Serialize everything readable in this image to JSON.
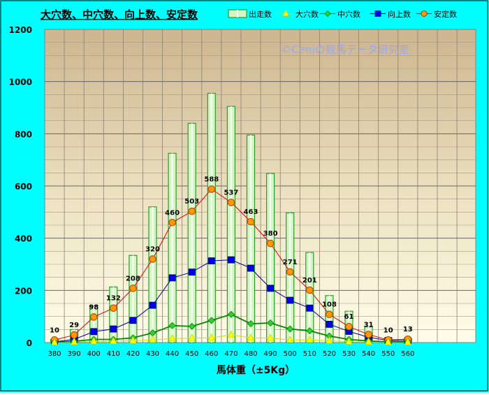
{
  "chart_data": {
    "type": "bar+line",
    "title": "大穴数、中穴数、向上数、安定数",
    "watermark": "©Ceniの競馬データ研究室",
    "xlabel": "馬体重（±5Kg）",
    "ylabel": "",
    "ylim": [
      0,
      1200
    ],
    "yticks": [
      0,
      200,
      400,
      600,
      800,
      1000,
      1200
    ],
    "grid": true,
    "legend_position": "top-right",
    "categories": [
      "380",
      "390",
      "400",
      "410",
      "420",
      "430",
      "440",
      "450",
      "460",
      "470",
      "480",
      "490",
      "500",
      "510",
      "520",
      "530",
      "540",
      "550",
      "560"
    ],
    "series": [
      {
        "name": "出走数",
        "kind": "bar",
        "color": "#2e9a2e",
        "fill": "#d4f5c4",
        "values": [
          12,
          50,
          140,
          213,
          334,
          520,
          725,
          840,
          955,
          905,
          795,
          648,
          497,
          345,
          180,
          120,
          60,
          18,
          15
        ]
      },
      {
        "name": "大穴数",
        "kind": "line",
        "marker": "triangle",
        "color": "#d8d800",
        "marker_color": "#ffff00",
        "values": [
          0,
          2,
          4,
          5,
          7,
          10,
          15,
          17,
          18,
          30,
          18,
          17,
          10,
          10,
          7,
          3,
          2,
          1,
          1
        ]
      },
      {
        "name": "中穴数",
        "kind": "line",
        "marker": "diamond",
        "color": "#008800",
        "marker_color": "#33cc33",
        "values": [
          2,
          5,
          12,
          12,
          18,
          37,
          65,
          62,
          85,
          108,
          72,
          75,
          52,
          45,
          25,
          12,
          6,
          3,
          3
        ]
      },
      {
        "name": "向上数",
        "kind": "line",
        "marker": "square",
        "color": "#000099",
        "marker_color": "#0000ee",
        "values": [
          3,
          12,
          42,
          52,
          85,
          143,
          248,
          270,
          313,
          317,
          285,
          208,
          162,
          132,
          70,
          43,
          20,
          8,
          8
        ]
      },
      {
        "name": "安定数",
        "kind": "line",
        "marker": "circle",
        "color": "#dd0000",
        "marker_color": "#ff9900",
        "values": [
          10,
          29,
          98,
          132,
          208,
          320,
          460,
          503,
          588,
          537,
          463,
          380,
          271,
          201,
          108,
          61,
          31,
          10,
          13
        ]
      }
    ],
    "data_labels": {
      "series": "安定数",
      "values": [
        "10",
        "29",
        "98",
        "132",
        "208",
        "320",
        "460",
        "503",
        "588",
        "537",
        "463",
        "380",
        "271",
        "201",
        "108",
        "61",
        "31",
        "10",
        "13"
      ]
    }
  }
}
